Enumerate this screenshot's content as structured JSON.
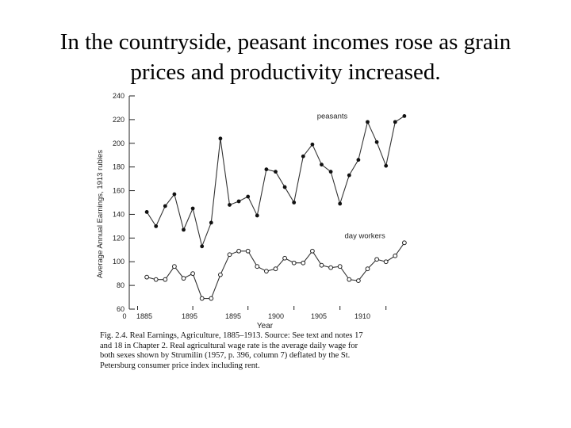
{
  "slide": {
    "title_line1": "In the countryside, peasant incomes rose as grain",
    "title_line2": "prices and productivity increased."
  },
  "chart_data": {
    "type": "line",
    "ylabel_line1": "Average Annual Earnings,",
    "ylabel_line2": "1913 rubles",
    "xlabel": "Year",
    "ylim": [
      60,
      240
    ],
    "yticks": [
      "60",
      "80",
      "100",
      "120",
      "140",
      "160",
      "180",
      "200",
      "220",
      "240"
    ],
    "xtick_labels": [
      "0",
      "1885",
      "1895",
      "1895",
      "1900",
      "1905",
      "1910"
    ],
    "xlim": [
      1883,
      1914
    ],
    "grid": false,
    "x": [
      1885,
      1886,
      1887,
      1888,
      1889,
      1890,
      1891,
      1892,
      1893,
      1894,
      1895,
      1896,
      1897,
      1898,
      1899,
      1900,
      1901,
      1902,
      1903,
      1904,
      1905,
      1906,
      1907,
      1908,
      1909,
      1910,
      1911,
      1912,
      1913
    ],
    "series": [
      {
        "name": "peasants",
        "marker": "filled",
        "label_x": 1903.5,
        "label_y": 221,
        "values": [
          142,
          130,
          147,
          157,
          127,
          145,
          113,
          133,
          204,
          148,
          151,
          155,
          139,
          178,
          176,
          163,
          150,
          189,
          199,
          182,
          176,
          149,
          173,
          186,
          218,
          201,
          181,
          218,
          223
        ]
      },
      {
        "name": "day workers",
        "marker": "open",
        "label_x": 1906.5,
        "label_y": 120,
        "values": [
          87,
          85,
          85,
          96,
          86,
          90,
          69,
          69,
          89,
          106,
          109,
          109,
          96,
          92,
          94,
          103,
          99,
          99,
          109,
          97,
          95,
          96,
          85,
          84,
          94,
          102,
          100,
          105,
          116
        ]
      }
    ]
  },
  "caption": {
    "line1": "Fig. 2.4. Real Earnings, Agriculture, 1885–1913. Source: See text and notes 17",
    "line2": "and 18 in Chapter 2. Real agricultural wage rate is the average daily wage for",
    "line3": "both sexes shown by Strumilin (1957, p. 396, column 7) deflated by the St.",
    "line4": "Petersburg consumer price index including rent."
  }
}
